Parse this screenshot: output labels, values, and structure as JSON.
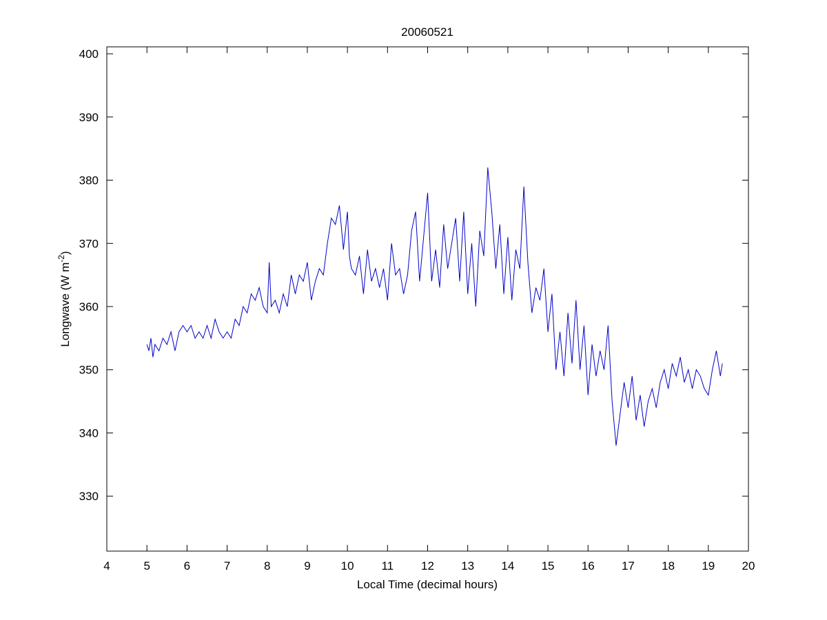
{
  "chart_data": {
    "type": "line",
    "title": "20060521",
    "xlabel": "Local Time (decimal hours)",
    "ylabel": {
      "text": "Longwave (W m",
      "superscript": "-2",
      "after": ")"
    },
    "xlim": [
      4,
      20
    ],
    "xticks": [
      4,
      5,
      6,
      7,
      8,
      9,
      10,
      11,
      12,
      13,
      14,
      15,
      16,
      17,
      18,
      19,
      20
    ],
    "ylim": [
      321.3,
      401.1
    ],
    "yticks": [
      330,
      340,
      350,
      360,
      370,
      380,
      390,
      400
    ],
    "grid": false,
    "series": [
      {
        "color": "#0000c8",
        "x": [
          5.0,
          5.05,
          5.1,
          5.15,
          5.2,
          5.3,
          5.4,
          5.5,
          5.6,
          5.7,
          5.8,
          5.9,
          6.0,
          6.1,
          6.2,
          6.3,
          6.4,
          6.5,
          6.6,
          6.7,
          6.8,
          6.9,
          7.0,
          7.1,
          7.2,
          7.3,
          7.4,
          7.5,
          7.6,
          7.7,
          7.8,
          7.9,
          8.0,
          8.05,
          8.1,
          8.2,
          8.3,
          8.4,
          8.5,
          8.6,
          8.7,
          8.8,
          8.9,
          9.0,
          9.1,
          9.2,
          9.3,
          9.4,
          9.5,
          9.6,
          9.7,
          9.8,
          9.9,
          10.0,
          10.05,
          10.1,
          10.2,
          10.3,
          10.4,
          10.5,
          10.6,
          10.7,
          10.8,
          10.9,
          11.0,
          11.1,
          11.2,
          11.3,
          11.4,
          11.5,
          11.6,
          11.7,
          11.8,
          11.9,
          12.0,
          12.1,
          12.2,
          12.3,
          12.4,
          12.5,
          12.6,
          12.7,
          12.8,
          12.9,
          13.0,
          13.1,
          13.2,
          13.3,
          13.4,
          13.5,
          13.6,
          13.7,
          13.8,
          13.9,
          14.0,
          14.1,
          14.2,
          14.3,
          14.4,
          14.5,
          14.6,
          14.7,
          14.8,
          14.9,
          15.0,
          15.1,
          15.2,
          15.3,
          15.4,
          15.5,
          15.6,
          15.7,
          15.8,
          15.9,
          16.0,
          16.1,
          16.2,
          16.3,
          16.4,
          16.5,
          16.6,
          16.7,
          16.8,
          16.9,
          17.0,
          17.1,
          17.2,
          17.3,
          17.4,
          17.5,
          17.6,
          17.7,
          17.8,
          17.9,
          18.0,
          18.1,
          18.2,
          18.3,
          18.4,
          18.5,
          18.6,
          18.7,
          18.8,
          18.9,
          19.0,
          19.1,
          19.2,
          19.3,
          19.35
        ],
        "values": [
          354,
          353,
          355,
          352,
          354,
          353,
          355,
          354,
          356,
          353,
          356,
          357,
          356,
          357,
          355,
          356,
          355,
          357,
          355,
          358,
          356,
          355,
          356,
          355,
          358,
          357,
          360,
          359,
          362,
          361,
          363,
          360,
          359,
          367,
          360,
          361,
          359,
          362,
          360,
          365,
          362,
          365,
          364,
          367,
          361,
          364,
          366,
          365,
          370,
          374,
          373,
          376,
          369,
          375,
          368,
          366,
          365,
          368,
          362,
          369,
          364,
          366,
          363,
          366,
          361,
          370,
          365,
          366,
          362,
          365,
          372,
          375,
          364,
          371,
          378,
          364,
          369,
          363,
          373,
          366,
          370,
          374,
          364,
          375,
          362,
          370,
          360,
          372,
          368,
          382,
          375,
          366,
          373,
          362,
          371,
          361,
          369,
          366,
          379,
          367,
          359,
          363,
          361,
          366,
          356,
          362,
          350,
          356,
          349,
          359,
          351,
          361,
          350,
          357,
          346,
          354,
          349,
          353,
          350,
          357,
          345,
          338,
          343,
          348,
          344,
          349,
          342,
          346,
          341,
          345,
          347,
          344,
          348,
          350,
          347,
          351,
          349,
          352,
          348,
          350,
          347,
          350,
          349,
          347,
          346,
          350,
          353,
          349,
          351
        ]
      }
    ]
  }
}
